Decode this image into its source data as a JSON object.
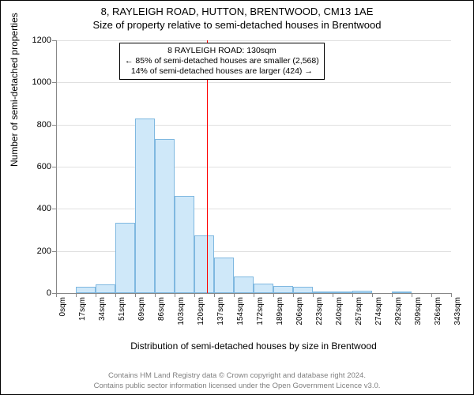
{
  "title": {
    "main": "8, RAYLEIGH ROAD, HUTTON, BRENTWOOD, CM13 1AE",
    "sub": "Size of property relative to semi-detached houses in Brentwood"
  },
  "ylabel": "Number of semi-detached properties",
  "xlabel": "Distribution of semi-detached houses by size in Brentwood",
  "chart": {
    "type": "histogram",
    "ylim": [
      0,
      1200
    ],
    "yticks": [
      0,
      200,
      400,
      600,
      800,
      1000,
      1200
    ],
    "xticks": [
      "0sqm",
      "17sqm",
      "34sqm",
      "51sqm",
      "69sqm",
      "86sqm",
      "103sqm",
      "120sqm",
      "137sqm",
      "154sqm",
      "172sqm",
      "189sqm",
      "206sqm",
      "223sqm",
      "240sqm",
      "257sqm",
      "274sqm",
      "292sqm",
      "309sqm",
      "326sqm",
      "343sqm"
    ],
    "bar_values": [
      0,
      30,
      40,
      335,
      830,
      730,
      460,
      275,
      170,
      80,
      45,
      35,
      30,
      8,
      8,
      10,
      0,
      5,
      0,
      0
    ],
    "bar_fill": "#cfe8f9",
    "bar_stroke": "#7fb8e0",
    "grid_color": "#e0e0e0",
    "axis_color": "#888888",
    "background": "#ffffff",
    "vline_x_bin": 7.65,
    "vline_color": "#ff0000",
    "vline_width": 1
  },
  "annotation": {
    "line1": "8 RAYLEIGH ROAD: 130sqm",
    "line2": "← 85% of semi-detached houses are smaller (2,568)",
    "line3": "14% of semi-detached houses are larger (424) →"
  },
  "footer": {
    "line1": "Contains HM Land Registry data © Crown copyright and database right 2024.",
    "line2": "Contains public sector information licensed under the Open Government Licence v3.0."
  }
}
